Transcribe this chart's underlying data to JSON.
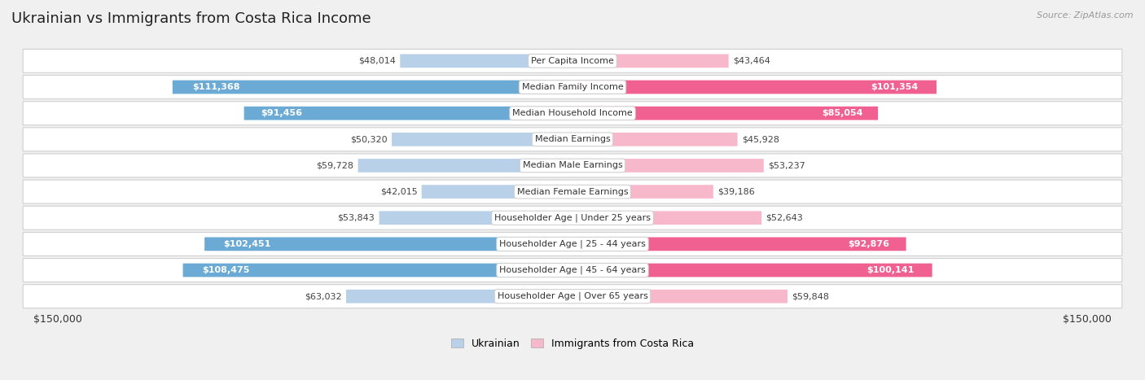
{
  "title": "Ukrainian vs Immigrants from Costa Rica Income",
  "source": "Source: ZipAtlas.com",
  "categories": [
    "Per Capita Income",
    "Median Family Income",
    "Median Household Income",
    "Median Earnings",
    "Median Male Earnings",
    "Median Female Earnings",
    "Householder Age | Under 25 years",
    "Householder Age | 25 - 44 years",
    "Householder Age | 45 - 64 years",
    "Householder Age | Over 65 years"
  ],
  "ukrainian_values": [
    48014,
    111368,
    91456,
    50320,
    59728,
    42015,
    53843,
    102451,
    108475,
    63032
  ],
  "costarica_values": [
    43464,
    101354,
    85054,
    45928,
    53237,
    39186,
    52643,
    92876,
    100141,
    59848
  ],
  "ukrainian_labels": [
    "$48,014",
    "$111,368",
    "$91,456",
    "$50,320",
    "$59,728",
    "$42,015",
    "$53,843",
    "$102,451",
    "$108,475",
    "$63,032"
  ],
  "costarica_labels": [
    "$43,464",
    "$101,354",
    "$85,054",
    "$45,928",
    "$53,237",
    "$39,186",
    "$52,643",
    "$92,876",
    "$100,141",
    "$59,848"
  ],
  "max_value": 150000,
  "ukrainian_color_light": "#b8d0e8",
  "ukrainian_color_dark": "#6aaad4",
  "costarica_color_light": "#f8b8cc",
  "costarica_color_dark": "#f06090",
  "label_inside_threshold": 75000,
  "background_color": "#f0f0f0",
  "row_bg_color": "#ffffff",
  "row_border_color": "#d0d0d0",
  "legend_ukrainian": "Ukrainian",
  "legend_costarica": "Immigrants from Costa Rica",
  "x_tick_label_left": "$150,000",
  "x_tick_label_right": "$150,000",
  "title_fontsize": 13,
  "label_fontsize": 8,
  "category_fontsize": 8
}
